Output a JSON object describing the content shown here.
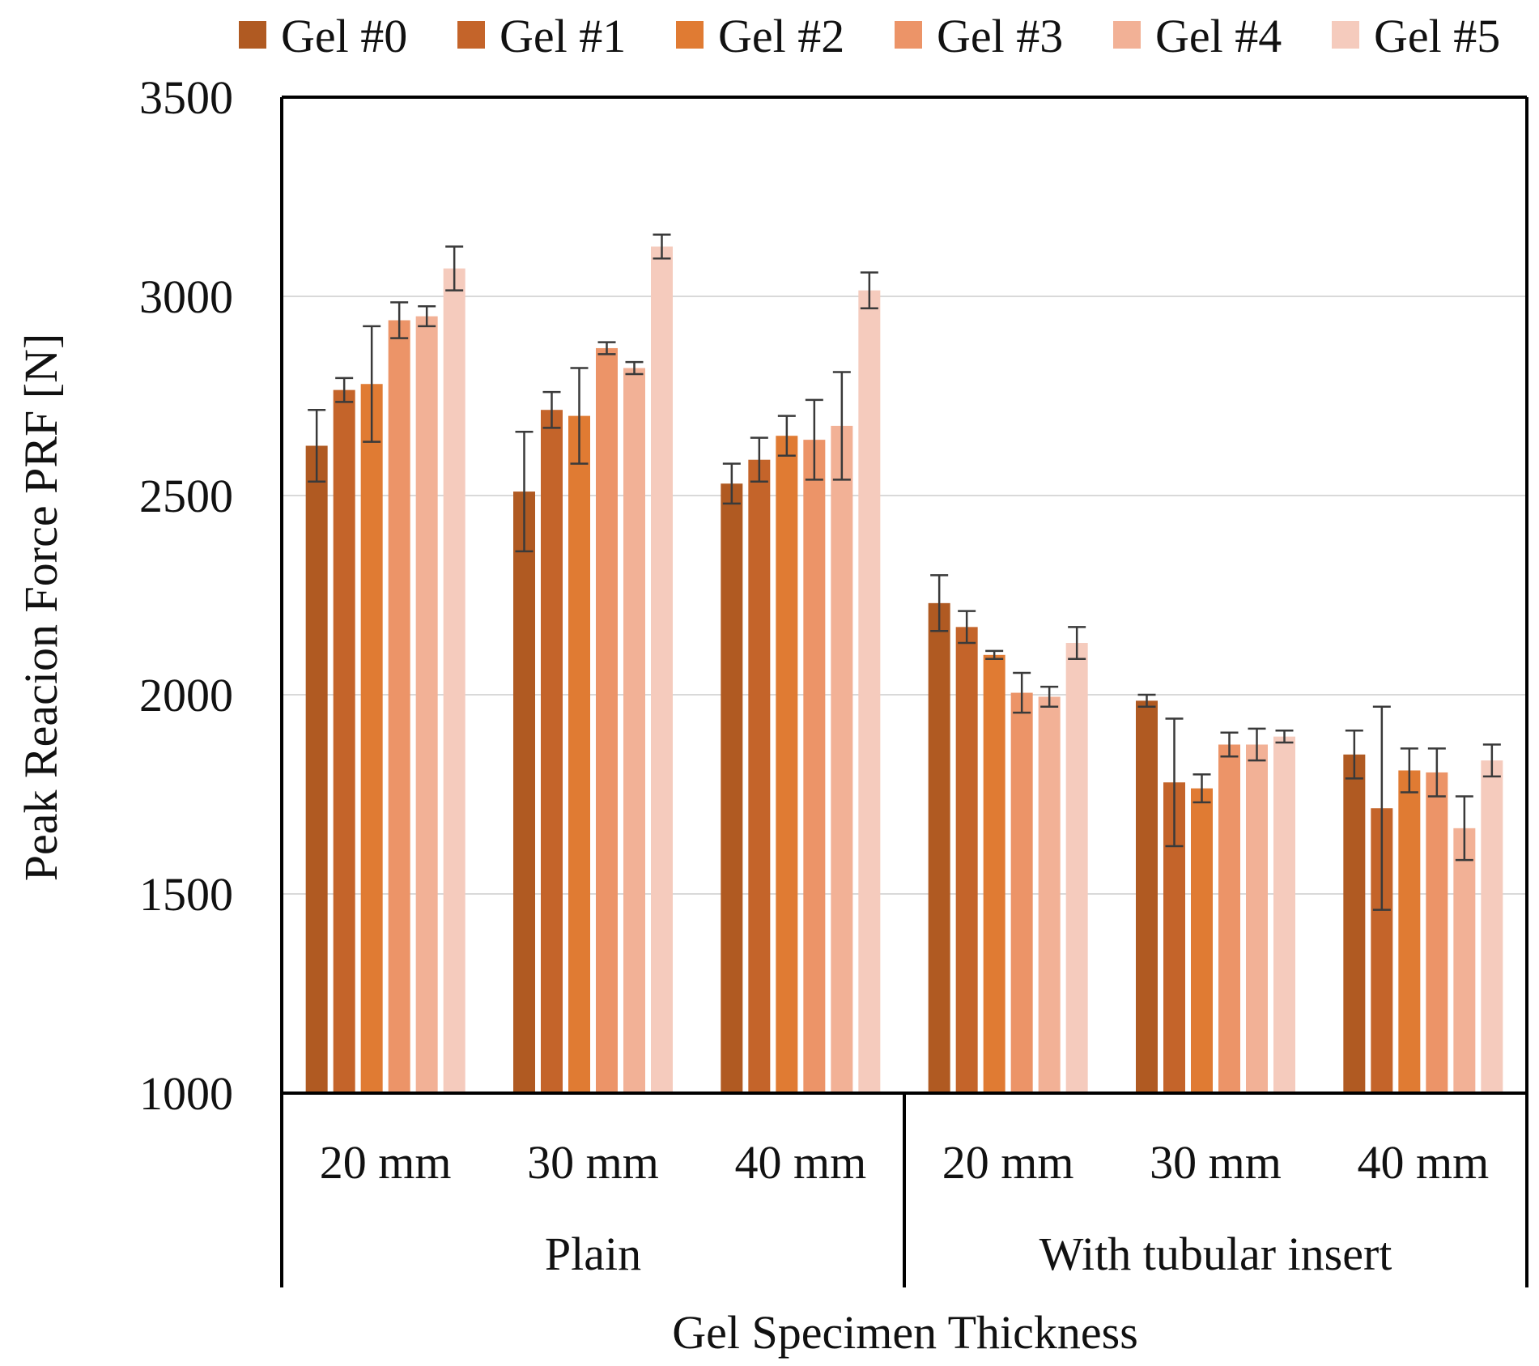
{
  "chart_data": {
    "type": "bar",
    "title": "",
    "xlabel": "Gel Specimen Thickness",
    "ylabel": "Peak Reacion Force PRF [N]",
    "ylim": [
      1000,
      3500
    ],
    "yticks": [
      "1000",
      "1500",
      "2000",
      "2500",
      "3000",
      "3500"
    ],
    "grid": true,
    "legend_position": "top",
    "groups": [
      {
        "label": "Plain",
        "categories": [
          "20 mm",
          "30 mm",
          "40 mm"
        ]
      },
      {
        "label": "With tubular insert",
        "categories": [
          "20 mm",
          "30 mm",
          "40 mm"
        ]
      }
    ],
    "categories": [
      "20 mm",
      "30 mm",
      "40 mm",
      "20 mm",
      "30 mm",
      "40 mm"
    ],
    "series": [
      {
        "name": "Gel #0",
        "color": "#b05a22",
        "values": [
          2625,
          2510,
          2530,
          2230,
          1985,
          1850
        ],
        "errors": [
          90,
          150,
          50,
          70,
          15,
          60
        ]
      },
      {
        "name": "Gel #1",
        "color": "#c4642a",
        "values": [
          2765,
          2715,
          2590,
          2170,
          1780,
          1715
        ],
        "errors": [
          30,
          45,
          55,
          40,
          160,
          255
        ]
      },
      {
        "name": "Gel #2",
        "color": "#e07b33",
        "values": [
          2780,
          2700,
          2650,
          2100,
          1765,
          1810
        ],
        "errors": [
          145,
          120,
          50,
          10,
          35,
          55
        ]
      },
      {
        "name": "Gel #3",
        "color": "#ec9468",
        "values": [
          2940,
          2870,
          2640,
          2005,
          1875,
          1805
        ],
        "errors": [
          45,
          15,
          100,
          50,
          30,
          60
        ]
      },
      {
        "name": "Gel #4",
        "color": "#f2b196",
        "values": [
          2950,
          2820,
          2675,
          1995,
          1875,
          1665
        ],
        "errors": [
          25,
          15,
          135,
          25,
          40,
          80
        ]
      },
      {
        "name": "Gel #5",
        "color": "#f5cbbd",
        "values": [
          3070,
          3125,
          3015,
          2130,
          1895,
          1835
        ],
        "errors": [
          55,
          30,
          45,
          40,
          15,
          40
        ]
      }
    ]
  }
}
